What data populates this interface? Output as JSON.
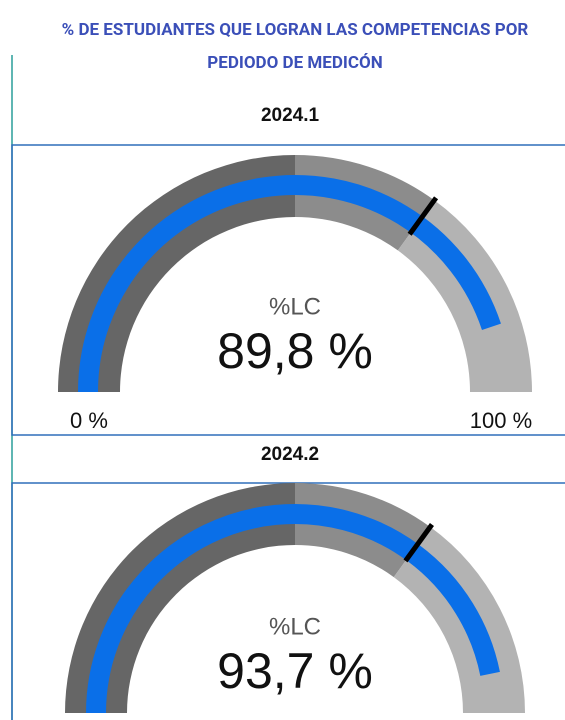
{
  "title": "% DE ESTUDIANTES QUE LOGRAN LAS COMPETENCIAS POR PEDIODO DE MEDICÓN",
  "chart_data": [
    {
      "type": "gauge",
      "title": "2024.1",
      "label": "%LC",
      "value": 89.8,
      "value_label": "89,8 %",
      "min": 0,
      "max": 100,
      "min_label": "0 %",
      "max_label": "100 %",
      "target": 70,
      "color": "#0a6fe8",
      "bands": [
        {
          "from": 0,
          "to": 50,
          "color": "#666666"
        },
        {
          "from": 50,
          "to": 70,
          "color": "#8c8c8c"
        },
        {
          "from": 70,
          "to": 100,
          "color": "#b3b3b3"
        }
      ]
    },
    {
      "type": "gauge",
      "title": "2024.2",
      "label": "%LC",
      "value": 93.7,
      "value_label": "93,7 %",
      "min": 0,
      "max": 100,
      "target": 70,
      "color": "#0a6fe8",
      "bands": [
        {
          "from": 0,
          "to": 50,
          "color": "#666666"
        },
        {
          "from": 50,
          "to": 70,
          "color": "#8c8c8c"
        },
        {
          "from": 70,
          "to": 100,
          "color": "#b3b3b3"
        }
      ]
    }
  ]
}
